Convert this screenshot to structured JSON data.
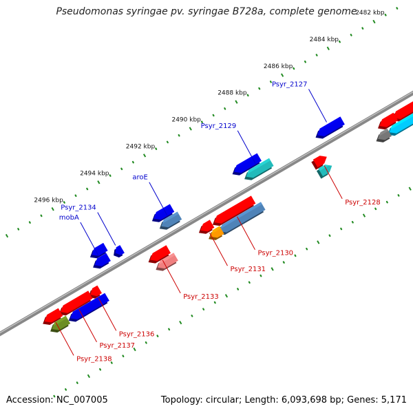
{
  "header": {
    "title": "Pseudomonas syringae pv. syringae B728a, complete genome"
  },
  "footer": {
    "accession": "Accession: NC_007005",
    "summary": "Topology: circular; Length: 6,093,698 bp; Genes: 5,171"
  },
  "colors": {
    "red": "#ff0000",
    "blue": "#0000ee",
    "cyan": "#00ccff",
    "teal": "#22bbbb",
    "steel": "#4f83b8",
    "orange": "#ff9900",
    "olive": "#6b8e23",
    "pink": "#f08080",
    "grey": "#777777",
    "silver": "#bbbbbb",
    "slate": "#6a6aa8",
    "label_blue": "#0000cc",
    "label_red": "#cc0000",
    "tick_green": "#228b22"
  },
  "scale": {
    "ticks": [
      {
        "label": "2482 kbp",
        "pos": 2482
      },
      {
        "label": "2484 kbp",
        "pos": 2484
      },
      {
        "label": "2486 kbp",
        "pos": 2486
      },
      {
        "label": "2488 kbp",
        "pos": 2488
      },
      {
        "label": "2490 kbp",
        "pos": 2490
      },
      {
        "label": "2492 kbp",
        "pos": 2492
      },
      {
        "label": "2494 kbp",
        "pos": 2494
      },
      {
        "label": "2496 kbp",
        "pos": 2496
      }
    ]
  },
  "features": [
    {
      "label": "",
      "start": 2481.2,
      "end": 2483.2,
      "track": -1,
      "dir": -1,
      "color": "red"
    },
    {
      "label": "",
      "start": 2481.6,
      "end": 2483.6,
      "track": -2,
      "dir": -1,
      "color": "cyan"
    },
    {
      "label": "",
      "start": 2483.1,
      "end": 2483.8,
      "track": -1,
      "dir": -1,
      "color": "red"
    },
    {
      "label": "",
      "start": 2483.6,
      "end": 2484.1,
      "track": -2,
      "dir": -1,
      "color": "grey"
    },
    {
      "label": "",
      "start": 2481.0,
      "end": 2481.9,
      "track": -2,
      "dir": -1,
      "color": "slate"
    },
    {
      "label": "Psyr_2127",
      "start": 2484.9,
      "end": 2486.0,
      "track": 1,
      "dir": -1,
      "color": "blue",
      "side": "top"
    },
    {
      "label": "Psyr_2128",
      "start": 2486.1,
      "end": 2486.6,
      "track": -1,
      "dir": 1,
      "color": "red",
      "side": "bottom"
    },
    {
      "label": "",
      "start": 2486.1,
      "end": 2486.6,
      "track": -2,
      "dir": 1,
      "color": "teal"
    },
    {
      "label": "Psyr_2129",
      "start": 2488.0,
      "end": 2489.1,
      "track": 1,
      "dir": -1,
      "color": "teal",
      "side": "top"
    },
    {
      "label": "",
      "start": 2488.3,
      "end": 2489.4,
      "track": 2,
      "dir": -1,
      "color": "blue"
    },
    {
      "label": "Psyr_2130",
      "start": 2489.3,
      "end": 2491.0,
      "track": -1,
      "dir": -1,
      "color": "red",
      "side": "bottom"
    },
    {
      "label": "",
      "start": 2489.1,
      "end": 2491.0,
      "track": -2,
      "dir": -1,
      "color": "steel"
    },
    {
      "label": "Psyr_2131",
      "start": 2491.1,
      "end": 2491.6,
      "track": -1,
      "dir": -1,
      "color": "red",
      "side": "bottom"
    },
    {
      "label": "",
      "start": 2490.9,
      "end": 2491.4,
      "track": -2,
      "dir": -1,
      "color": "orange"
    },
    {
      "label": "aroE",
      "start": 2492.0,
      "end": 2492.8,
      "track": 1,
      "dir": -1,
      "color": "steel",
      "side": "top"
    },
    {
      "label": "",
      "start": 2492.1,
      "end": 2492.9,
      "track": 2,
      "dir": -1,
      "color": "blue"
    },
    {
      "label": "Psyr_2133",
      "start": 2493.0,
      "end": 2493.8,
      "track": -1,
      "dir": -1,
      "color": "red",
      "side": "bottom"
    },
    {
      "label": "",
      "start": 2492.9,
      "end": 2493.7,
      "track": -2,
      "dir": -1,
      "color": "pink"
    },
    {
      "label": "Psyr_2134",
      "start": 2494.5,
      "end": 2494.8,
      "track": 1,
      "dir": -1,
      "color": "blue",
      "side": "top"
    },
    {
      "label": "mobA",
      "start": 2495.1,
      "end": 2495.7,
      "track": 1,
      "dir": -1,
      "color": "blue",
      "side": "top"
    },
    {
      "label": "",
      "start": 2495.0,
      "end": 2495.6,
      "track": 2,
      "dir": -1,
      "color": "blue"
    },
    {
      "label": "Psyr_2136",
      "start": 2496.0,
      "end": 2496.4,
      "track": -1,
      "dir": -1,
      "color": "red",
      "side": "bottom"
    },
    {
      "label": "Psyr_2137",
      "start": 2496.4,
      "end": 2497.7,
      "track": -1,
      "dir": -1,
      "color": "red",
      "side": "bottom"
    },
    {
      "label": "",
      "start": 2495.9,
      "end": 2497.5,
      "track": -2,
      "dir": -1,
      "color": "blue"
    },
    {
      "label": "Psyr_2138",
      "start": 2497.7,
      "end": 2498.4,
      "track": -1,
      "dir": -1,
      "color": "red",
      "side": "bottom"
    },
    {
      "label": "",
      "start": 2497.6,
      "end": 2498.3,
      "track": -2,
      "dir": -1,
      "color": "olive"
    }
  ]
}
